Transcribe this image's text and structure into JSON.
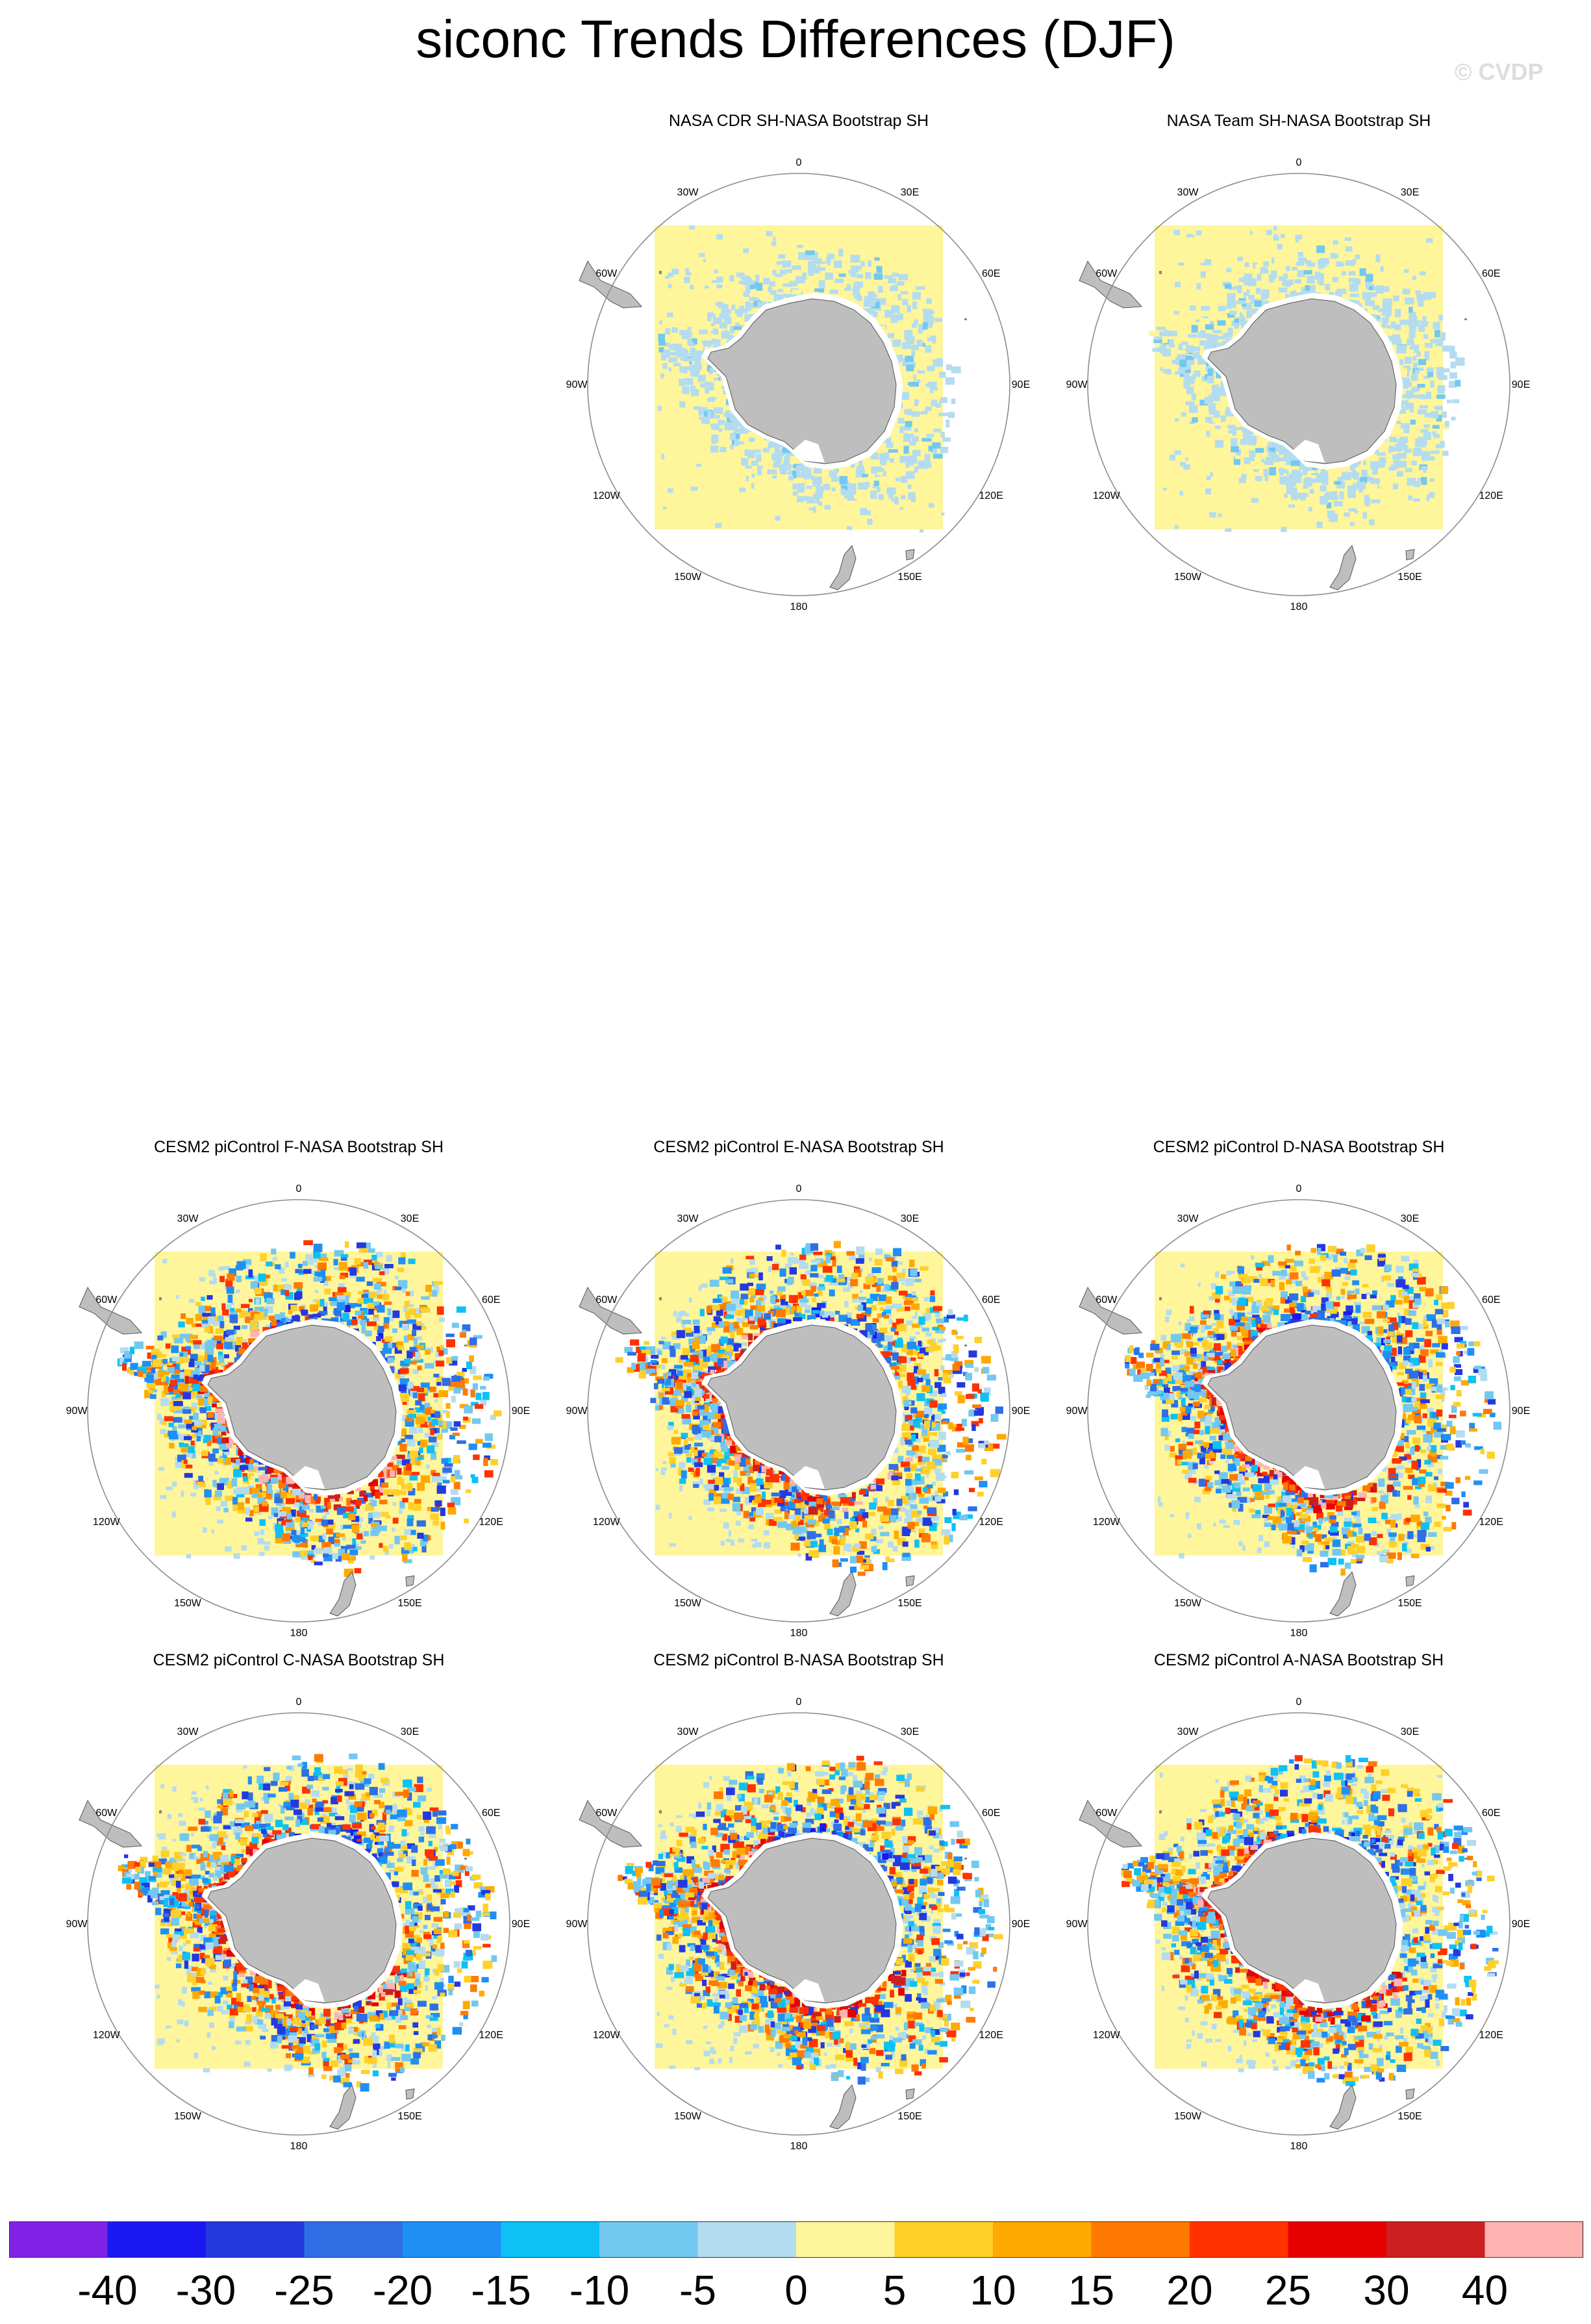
{
  "title": "siconc Trends Differences (DJF)",
  "watermark": "© CVDP",
  "lon_labels": [
    "0",
    "30E",
    "60E",
    "90E",
    "120E",
    "150E",
    "180",
    "150W",
    "120W",
    "90W",
    "60W",
    "30W"
  ],
  "colors": {
    "land": "#bebebe",
    "mask_background": "#fff59a",
    "circle": "#8c8c8c"
  },
  "chart_data": {
    "type": "heatmap",
    "projection": "south-polar-stereographic",
    "variable": "siconc",
    "season": "DJF",
    "colorbar": {
      "labels": [
        "-40",
        "-30",
        "-25",
        "-20",
        "-15",
        "-10",
        "-5",
        "0",
        "5",
        "10",
        "15",
        "20",
        "25",
        "30",
        "40"
      ],
      "colors": [
        "#7f22e6",
        "#1a18f0",
        "#2438e0",
        "#2e6fe5",
        "#1f8ff5",
        "#0ec1f5",
        "#73c8f0",
        "#b4dcf0",
        "#fff59a",
        "#ffd02a",
        "#ffaa00",
        "#ff7a00",
        "#ff3200",
        "#e60000",
        "#cc2020",
        "#ffb3b3"
      ]
    },
    "panels": [
      {
        "title": "NASA CDR SH-NASA Bootstrap SH",
        "intensity": 0.06
      },
      {
        "title": "NASA Team SH-NASA Bootstrap SH",
        "intensity": 0.14
      },
      {
        "title": "CESM2 piControl F-NASA Bootstrap SH",
        "intensity": 0.92
      },
      {
        "title": "CESM2 piControl E-NASA Bootstrap SH",
        "intensity": 0.95
      },
      {
        "title": "CESM2 piControl D-NASA Bootstrap SH",
        "intensity": 0.88
      },
      {
        "title": "CESM2 piControl C-NASA Bootstrap SH",
        "intensity": 0.9
      },
      {
        "title": "CESM2 piControl B-NASA Bootstrap SH",
        "intensity": 0.93
      },
      {
        "title": "CESM2 piControl A-NASA Bootstrap SH",
        "intensity": 0.9
      }
    ]
  }
}
